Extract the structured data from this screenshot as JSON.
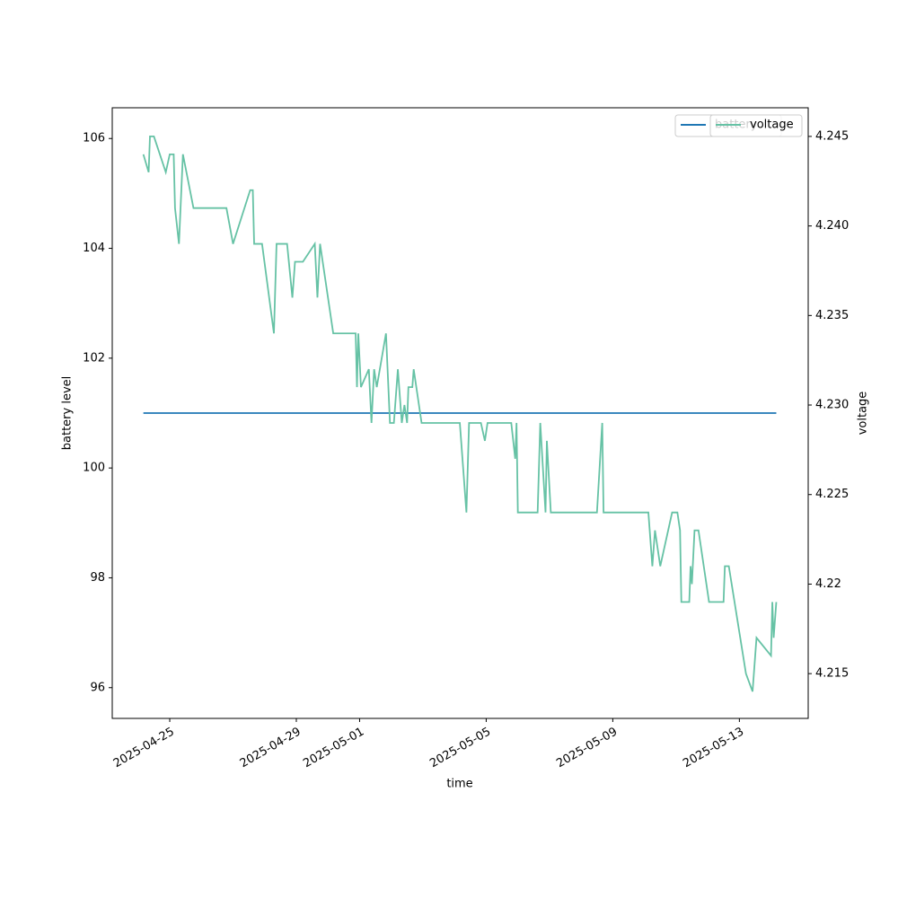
{
  "chart_data": {
    "type": "line",
    "xlabel": "time",
    "ylabel": "battery level",
    "y2label": "voltage",
    "xlim": [
      "2025-04-23T04:24",
      "2025-05-15T04:12"
    ],
    "xticks": [
      "2025-04-25",
      "2025-04-29",
      "2025-05-01",
      "2025-05-05",
      "2025-05-09",
      "2025-05-13"
    ],
    "ylim": [
      95.44,
      106.56
    ],
    "yticks": [
      96,
      98,
      100,
      102,
      104,
      106
    ],
    "y2lim": [
      4.2125,
      4.2466
    ],
    "y2ticks": [
      4.215,
      4.22,
      4.225,
      {
        "value": 4.23,
        "label": "4.230"
      },
      4.235,
      {
        "value": 4.24,
        "label": "4.240"
      },
      4.245
    ],
    "legend": "upper right",
    "series": [
      {
        "name": "battery",
        "color": "#1f77b4",
        "x": [
          "2025-04-24T04:00",
          "2025-05-14T04:00"
        ],
        "values": [
          101,
          101
        ]
      },
      {
        "name": "voltage",
        "color": "#66c2a5",
        "axis": "y2",
        "x": [
          "2025-04-24T04:00",
          "2025-04-24T08:00",
          "2025-04-24T09:00",
          "2025-04-24T12:00",
          "2025-04-24T21:00",
          "2025-04-25T00:00",
          "2025-04-25T03:00",
          "2025-04-25T04:00",
          "2025-04-25T07:00",
          "2025-04-25T10:00",
          "2025-04-25T18:00",
          "2025-04-26T19:00",
          "2025-04-27T00:00",
          "2025-04-27T13:00",
          "2025-04-27T15:00",
          "2025-04-27T16:00",
          "2025-04-27T22:00",
          "2025-04-28T07:00",
          "2025-04-28T09:00",
          "2025-04-28T17:00",
          "2025-04-28T21:00",
          "2025-04-28T23:00",
          "2025-04-29T05:00",
          "2025-04-29T14:00",
          "2025-04-29T16:00",
          "2025-04-29T18:00",
          "2025-04-30T04:00",
          "2025-04-30T21:00",
          "2025-04-30T22:00",
          "2025-04-30T23:00",
          "2025-05-01T01:00",
          "2025-05-01T07:00",
          "2025-05-01T09:00",
          "2025-05-01T11:00",
          "2025-05-01T13:00",
          "2025-05-01T20:00",
          "2025-05-01T23:00",
          "2025-05-02T02:00",
          "2025-05-02T05:00",
          "2025-05-02T08:00",
          "2025-05-02T10:00",
          "2025-05-02T12:00",
          "2025-05-02T13:00",
          "2025-05-02T16:00",
          "2025-05-02T17:00",
          "2025-05-02T23:00",
          "2025-05-04T04:00",
          "2025-05-04T09:00",
          "2025-05-04T11:00",
          "2025-05-04T20:00",
          "2025-05-04T23:00",
          "2025-05-05T01:00",
          "2025-05-05T19:00",
          "2025-05-05T22:00",
          "2025-05-05T23:00",
          "2025-05-06T00:00",
          "2025-05-06T15:00",
          "2025-05-06T17:00",
          "2025-05-06T21:00",
          "2025-05-06T22:00",
          "2025-05-07T01:00",
          "2025-05-08T12:00",
          "2025-05-08T16:00",
          "2025-05-08T17:00",
          "2025-05-10T03:00",
          "2025-05-10T06:00",
          "2025-05-10T08:00",
          "2025-05-10T12:00",
          "2025-05-10T21:00",
          "2025-05-11T01:00",
          "2025-05-11T03:00",
          "2025-05-11T04:00",
          "2025-05-11T10:00",
          "2025-05-11T11:00",
          "2025-05-11T12:00",
          "2025-05-11T14:00",
          "2025-05-11T17:00",
          "2025-05-12T01:00",
          "2025-05-12T12:00",
          "2025-05-12T13:00",
          "2025-05-12T16:00",
          "2025-05-13T05:00",
          "2025-05-13T10:00",
          "2025-05-13T13:00",
          "2025-05-14T00:00",
          "2025-05-14T01:00",
          "2025-05-14T02:00",
          "2025-05-14T04:00"
        ],
        "values": [
          4.244,
          4.243,
          4.245,
          4.245,
          4.243,
          4.244,
          4.244,
          4.241,
          4.239,
          4.244,
          4.241,
          4.241,
          4.239,
          4.242,
          4.242,
          4.239,
          4.239,
          4.234,
          4.239,
          4.239,
          4.236,
          4.238,
          4.238,
          4.239,
          4.236,
          4.239,
          4.234,
          4.234,
          4.231,
          4.234,
          4.231,
          4.232,
          4.229,
          4.232,
          4.231,
          4.234,
          4.229,
          4.229,
          4.232,
          4.229,
          4.23,
          4.229,
          4.231,
          4.231,
          4.232,
          4.229,
          4.229,
          4.224,
          4.229,
          4.229,
          4.228,
          4.229,
          4.229,
          4.227,
          4.229,
          4.224,
          4.224,
          4.229,
          4.224,
          4.228,
          4.224,
          4.224,
          4.229,
          4.224,
          4.224,
          4.221,
          4.223,
          4.221,
          4.224,
          4.224,
          4.223,
          4.219,
          4.219,
          4.221,
          4.22,
          4.223,
          4.223,
          4.219,
          4.219,
          4.221,
          4.221,
          4.215,
          4.214,
          4.217,
          4.216,
          4.219,
          4.217,
          4.219
        ]
      }
    ]
  }
}
